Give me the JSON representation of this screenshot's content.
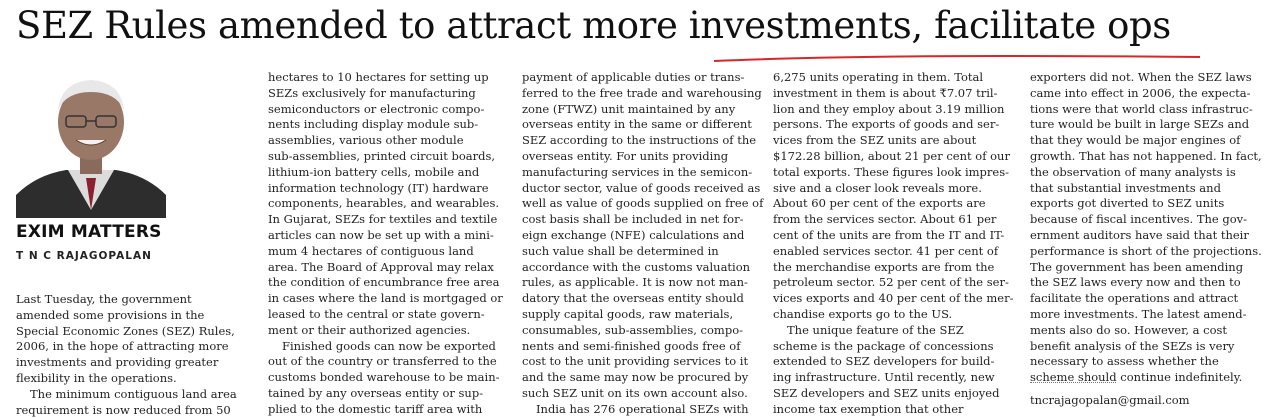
{
  "headline": "SEZ Rules amended to attract more investments, facilitate ops",
  "column_title": "EXIM MATTERS",
  "author": "T N C RAJAGOPALAN",
  "email": "tncrajagopalan@gmail.com",
  "col1": [
    "Last Tuesday, the government",
    "amended some provisions in the",
    "Special Economic Zones (SEZ) Rules,",
    "2006, in the hope of attracting more",
    "investments and providing greater",
    "flexibility in the operations.",
    "The minimum contiguous land area",
    "requirement is now reduced from 50"
  ],
  "col2": [
    "hectares to 10 hectares for setting up",
    "SEZs exclusively for manufacturing",
    "semiconductors or electronic compo-",
    "nents including display module sub-",
    "assemblies, various other module",
    "sub-assemblies, printed circuit boards,",
    "lithium-ion battery cells, mobile and",
    "information technology (IT) hardware",
    "components, hearables, and wearables.",
    "In Gujarat, SEZs for textiles and textile",
    "articles can now be set up with a mini-",
    "mum 4 hectares of contiguous land",
    "area. The Board of Approval may relax",
    "the condition of encumbrance free area",
    "in cases where the land is mortgaged or",
    "leased to the central or state govern-",
    "ment or their authorized agencies.",
    "Finished goods can now be exported",
    "out of the country or transferred to the",
    "customs bonded warehouse to be main-",
    "tained by any overseas entity or sup-",
    "plied to the domestic tariff area with"
  ],
  "col3": [
    "payment of applicable duties or trans-",
    "ferred to the free trade and warehousing",
    "zone (FTWZ) unit maintained by any",
    "overseas entity in the same or different",
    "SEZ according to the instructions of the",
    "overseas entity. For units providing",
    "manufacturing services in the semicon-",
    "ductor sector, value of goods received as",
    "well as value of goods supplied on free of",
    "cost basis shall be included in net for-",
    "eign exchange (NFE) calculations and",
    "such value shall be determined in",
    "accordance with the customs valuation",
    "rules, as applicable. It is now not man-",
    "datory that the overseas entity should",
    "supply capital goods, raw materials,",
    "consumables, sub-assemblies, compo-",
    "nents and semi-finished goods free of",
    "cost to the unit providing services to it",
    "and the same may now be procured by",
    "such SEZ unit on its own account also.",
    "India has 276 operational SEZs with"
  ],
  "col4": [
    "6,275 units operating in them. Total",
    "investment in them is about ₹7.07 tril-",
    "lion and they employ about 3.19 million",
    "persons. The exports of goods and ser-",
    "vices from the SEZ units are about",
    "$172.28 billion, about 21 per cent of our",
    "total exports. These figures look impres-",
    "sive and a closer look reveals more.",
    "About 60 per cent of the exports are",
    "from the services sector. About 61 per",
    "cent of the units are from the IT and IT-",
    "enabled services sector. 41 per cent of",
    "the merchandise exports are from the",
    "petroleum sector. 52 per cent of the ser-",
    "vices exports and 40 per cent of the mer-",
    "chandise exports go to the US.",
    "The unique feature of the SEZ",
    "scheme is the package of concessions",
    "extended to SEZ developers for build-",
    "ing infrastructure.  Until recently, new",
    "SEZ developers and SEZ units enjoyed",
    "income tax exemption that other"
  ],
  "col5": [
    "exporters did not. When the SEZ laws",
    "came into effect in 2006, the expecta-",
    "tions were that world class infrastruc-",
    "ture would be built in large SEZs and",
    "that they would be major engines of",
    "growth. That has not happened. In fact,",
    "the observation of many analysts is",
    "that substantial investments and",
    "exports got diverted to SEZ units",
    "because of fiscal incentives. The gov-",
    "ernment auditors have said that their",
    "performance is short of the projections.",
    "The government has been amending",
    "the SEZ laws every now and then to",
    "facilitate the operations and attract",
    "more investments. The latest amend-",
    "ments also do so.  However, a cost",
    "benefit analysis of the SEZs is very",
    "necessary to assess whether the",
    "scheme should continue indefinitely."
  ]
}
